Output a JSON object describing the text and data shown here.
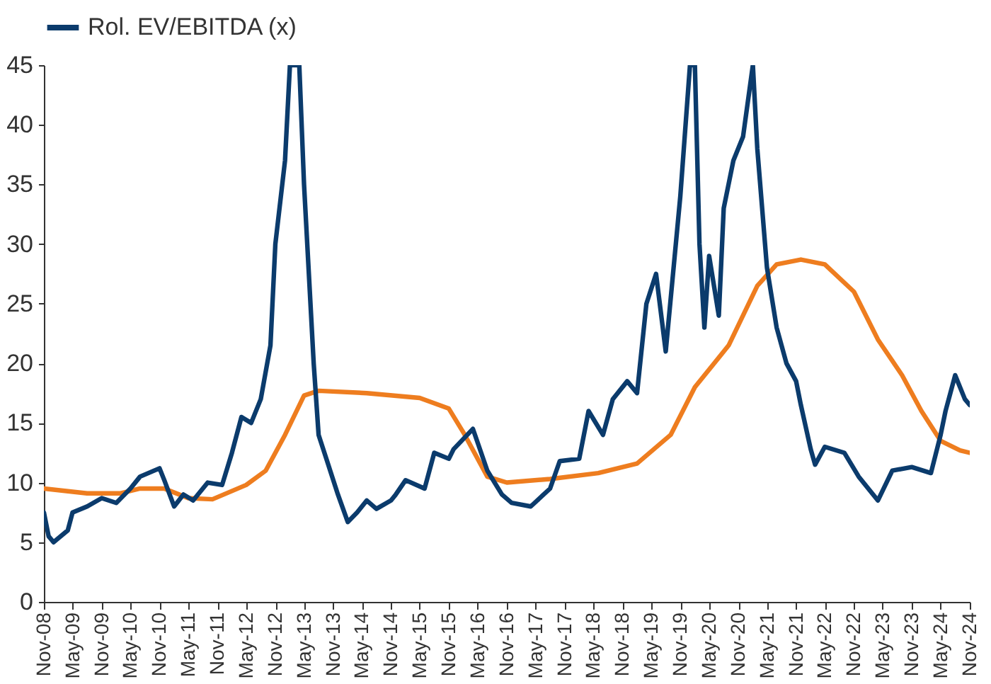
{
  "chart_data": {
    "type": "line",
    "xlim": [
      "2008-11",
      "2024-11"
    ],
    "ylim": [
      0,
      45
    ],
    "yticks": [
      0,
      5,
      10,
      15,
      20,
      25,
      30,
      35,
      40,
      45
    ],
    "xticks": [
      {
        "value": "2008-11",
        "label": "Nov-08"
      },
      {
        "value": "2009-05",
        "label": "May-09"
      },
      {
        "value": "2009-11",
        "label": "Nov-09"
      },
      {
        "value": "2010-05",
        "label": "May-10"
      },
      {
        "value": "2010-11",
        "label": "Nov-10"
      },
      {
        "value": "2011-05",
        "label": "May-11"
      },
      {
        "value": "2011-11",
        "label": "Nov-11"
      },
      {
        "value": "2012-05",
        "label": "May-12"
      },
      {
        "value": "2012-11",
        "label": "Nov-12"
      },
      {
        "value": "2013-05",
        "label": "May-13"
      },
      {
        "value": "2013-11",
        "label": "Nov-13"
      },
      {
        "value": "2014-05",
        "label": "May-14"
      },
      {
        "value": "2014-11",
        "label": "Nov-14"
      },
      {
        "value": "2015-05",
        "label": "May-15"
      },
      {
        "value": "2015-11",
        "label": "Nov-15"
      },
      {
        "value": "2016-05",
        "label": "May-16"
      },
      {
        "value": "2016-11",
        "label": "Nov-16"
      },
      {
        "value": "2017-05",
        "label": "May-17"
      },
      {
        "value": "2017-11",
        "label": "Nov-17"
      },
      {
        "value": "2018-05",
        "label": "May-18"
      },
      {
        "value": "2018-11",
        "label": "Nov-18"
      },
      {
        "value": "2019-05",
        "label": "May-19"
      },
      {
        "value": "2019-11",
        "label": "Nov-19"
      },
      {
        "value": "2020-05",
        "label": "May-20"
      },
      {
        "value": "2020-11",
        "label": "Nov-20"
      },
      {
        "value": "2021-05",
        "label": "May-21"
      },
      {
        "value": "2021-11",
        "label": "Nov-21"
      },
      {
        "value": "2022-05",
        "label": "May-22"
      },
      {
        "value": "2022-11",
        "label": "Nov-22"
      },
      {
        "value": "2023-05",
        "label": "May-23"
      },
      {
        "value": "2023-11",
        "label": "Nov-23"
      },
      {
        "value": "2024-05",
        "label": "May-24"
      },
      {
        "value": "2024-11",
        "label": "Nov-24"
      }
    ],
    "grid": false,
    "legend": "top",
    "line_style": "solid",
    "marker": "none",
    "series": [
      {
        "name": "Rol. EV/EBITDA (x)",
        "color": "#0b3b6c",
        "x": [
          "2008-11",
          "2008-12",
          "2009-01",
          "2009-04",
          "2009-05",
          "2009-08",
          "2009-11",
          "2010-02",
          "2010-05",
          "2010-07",
          "2010-11",
          "2010-12",
          "2011-02",
          "2011-04",
          "2011-06",
          "2011-09",
          "2011-12",
          "2012-02",
          "2012-04",
          "2012-06",
          "2012-08",
          "2012-10",
          "2012-11",
          "2013-01",
          "2013-02",
          "2013-04",
          "2013-05",
          "2013-07",
          "2013-08",
          "2013-10",
          "2013-12",
          "2014-02",
          "2014-04",
          "2014-06",
          "2014-08",
          "2014-11",
          "2014-12",
          "2015-02",
          "2015-06",
          "2015-08",
          "2015-11",
          "2015-12",
          "2016-04",
          "2016-07",
          "2016-10",
          "2016-12",
          "2017-04",
          "2017-08",
          "2017-10",
          "2018-02",
          "2018-04",
          "2018-07",
          "2018-09",
          "2018-12",
          "2019-02",
          "2019-04",
          "2019-06",
          "2019-08",
          "2019-11",
          "2020-01",
          "2020-02",
          "2020-03",
          "2020-04",
          "2020-05",
          "2020-07",
          "2020-08",
          "2020-10",
          "2020-12",
          "2021-02",
          "2021-03",
          "2021-05",
          "2021-07",
          "2021-09",
          "2021-11",
          "2021-12",
          "2022-02",
          "2022-03",
          "2022-05",
          "2022-09",
          "2022-12",
          "2023-04",
          "2023-07",
          "2023-11",
          "2024-03",
          "2024-05",
          "2024-06",
          "2024-08",
          "2024-10",
          "2024-11"
        ],
        "values": [
          7.5,
          5.5,
          5.0,
          6.0,
          7.5,
          8.0,
          8.7,
          8.3,
          9.5,
          10.5,
          11.2,
          10.2,
          8.0,
          9.0,
          8.5,
          10.0,
          9.8,
          12.5,
          15.5,
          15.0,
          17.0,
          21.5,
          30,
          37,
          45,
          45,
          35,
          20,
          14,
          11.5,
          9,
          6.7,
          7.5,
          8.5,
          7.8,
          8.5,
          9.0,
          10.2,
          9.5,
          12.5,
          12.0,
          12.8,
          14.5,
          11,
          9.0,
          8.3,
          8.0,
          9.5,
          11.8,
          12.0,
          16,
          14,
          17,
          18.5,
          17.5,
          25,
          27.5,
          21,
          34,
          45,
          45,
          30,
          23,
          29,
          24,
          33,
          37,
          39,
          45,
          38,
          28,
          23,
          20,
          18.5,
          16.5,
          12.8,
          11.5,
          13,
          12.5,
          10.5,
          8.5,
          11,
          11.3,
          10.8,
          14,
          16,
          19,
          17,
          16.5
        ]
      },
      {
        "color": "#ee7d1f",
        "x": [
          "2008-11",
          "2009-08",
          "2010-03",
          "2010-07",
          "2010-12",
          "2011-05",
          "2011-10",
          "2012-05",
          "2012-09",
          "2013-01",
          "2013-05",
          "2013-08",
          "2014-06",
          "2015-05",
          "2015-11",
          "2016-02",
          "2016-07",
          "2016-11",
          "2017-08",
          "2018-06",
          "2019-02",
          "2019-09",
          "2020-02",
          "2020-09",
          "2021-03",
          "2021-07",
          "2021-12",
          "2022-05",
          "2022-11",
          "2023-04",
          "2023-09",
          "2024-01",
          "2024-05",
          "2024-09",
          "2024-11"
        ],
        "values": [
          9.5,
          9.1,
          9.1,
          9.5,
          9.5,
          8.7,
          8.6,
          9.8,
          11,
          14,
          17.3,
          17.7,
          17.5,
          17.1,
          16.2,
          14.2,
          10.5,
          10.0,
          10.3,
          10.8,
          11.6,
          14,
          18,
          21.5,
          26.5,
          28.3,
          28.7,
          28.3,
          26,
          22,
          19,
          16,
          13.5,
          12.7,
          12.5
        ]
      }
    ]
  }
}
